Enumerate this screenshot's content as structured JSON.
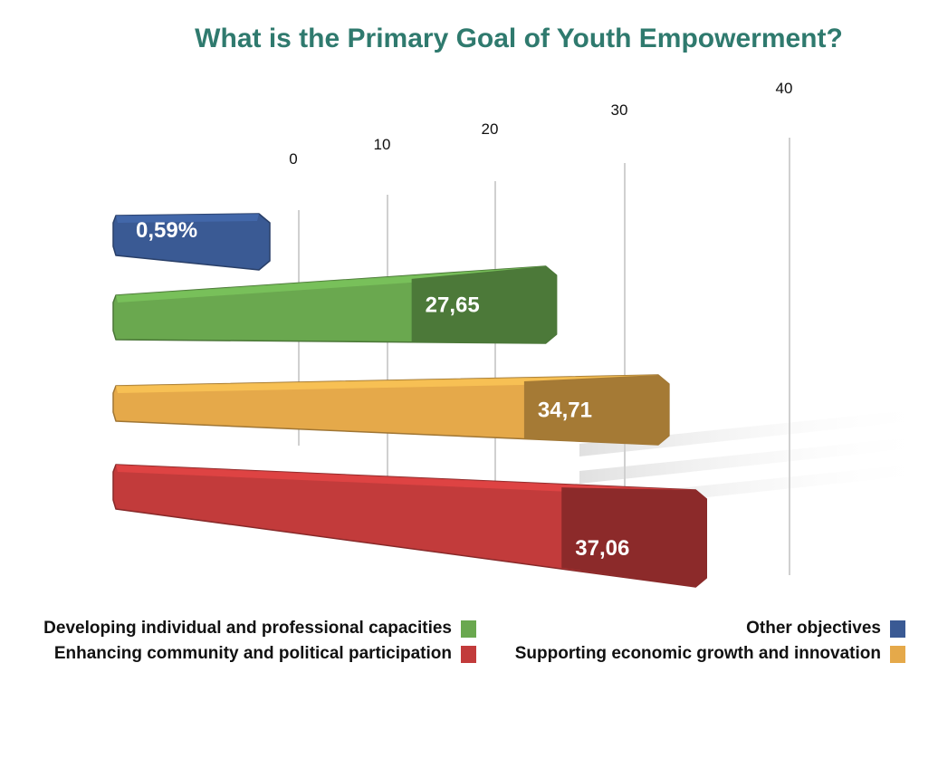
{
  "chart_data": {
    "type": "bar",
    "orientation": "horizontal",
    "title": "What is the Primary Goal of Youth Empowerment?",
    "categories": [
      "Other objectives",
      "Developing individual and professional capacities",
      "Supporting economic growth and innovation",
      "Enhancing community and political participation"
    ],
    "values": [
      0.59,
      27.65,
      34.71,
      37.06
    ],
    "data_labels": [
      "0,59%",
      "27,65",
      "34,71",
      "37,06"
    ],
    "colors": [
      "#3a5a94",
      "#6aa84f",
      "#e5a94a",
      "#c23b3b"
    ],
    "x_ticks": [
      "0",
      "10",
      "20",
      "30",
      "40"
    ],
    "xlim": [
      0,
      40
    ],
    "grid": true,
    "legend": [
      {
        "label": "Developing individual and professional capacities",
        "color": "#6aa84f"
      },
      {
        "label": "Enhancing community and political participation",
        "color": "#c23b3b"
      },
      {
        "label": "Other objectives",
        "color": "#3a5a94"
      },
      {
        "label": "Supporting economic growth and innovation",
        "color": "#e5a94a"
      }
    ]
  }
}
